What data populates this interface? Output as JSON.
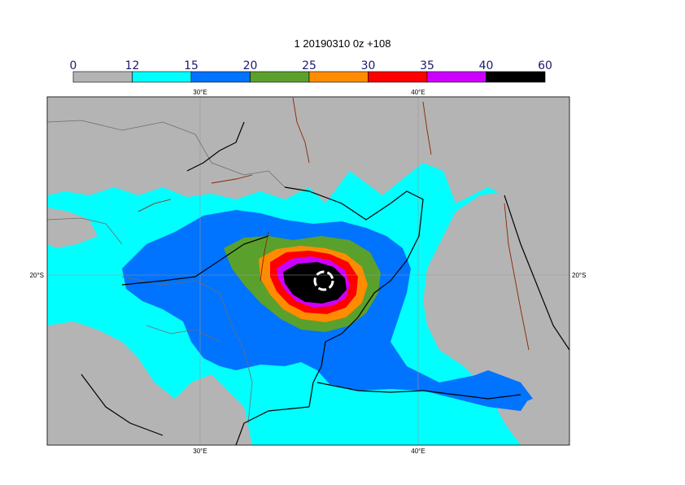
{
  "title": "1 20190310 0z +108",
  "colorbar": {
    "ticks": [
      "0",
      "12",
      "15",
      "20",
      "25",
      "30",
      "35",
      "40",
      "60"
    ],
    "colors": [
      "#b4b4b4",
      "#00ffff",
      "#0073ff",
      "#5aa02d",
      "#ff8c00",
      "#ff0000",
      "#cd00ff",
      "#000000"
    ]
  },
  "axes": {
    "top": [
      {
        "label": "30°E"
      },
      {
        "label": "40°E"
      }
    ],
    "bottom": [
      {
        "label": "30°E"
      },
      {
        "label": "40°E"
      }
    ],
    "left": [
      {
        "label": "20°S"
      }
    ],
    "right": [
      {
        "label": "20°S"
      }
    ]
  },
  "colors": {
    "land": "#b4b4b4",
    "coast": "#000000",
    "border": "#6e6e6e",
    "rivers": "#8b2500"
  }
}
